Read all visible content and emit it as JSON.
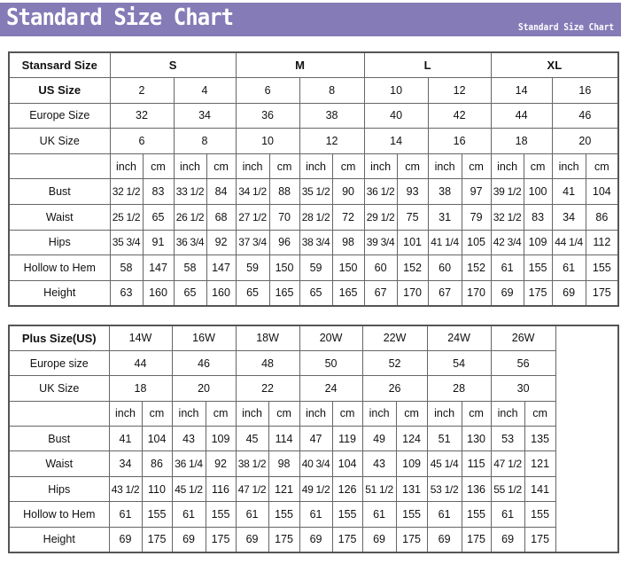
{
  "header": {
    "title": "Standard Size Chart",
    "subtitle": "Standard Size Chart"
  },
  "standard": {
    "label": "Stansard Size",
    "groups": [
      "S",
      "M",
      "L",
      "XL"
    ],
    "rows": [
      {
        "label": "US Size",
        "values": [
          "2",
          "4",
          "6",
          "8",
          "10",
          "12",
          "14",
          "16"
        ]
      },
      {
        "label": "Europe Size",
        "values": [
          "32",
          "34",
          "36",
          "38",
          "40",
          "42",
          "44",
          "46"
        ]
      },
      {
        "label": "UK Size",
        "values": [
          "6",
          "8",
          "10",
          "12",
          "14",
          "16",
          "18",
          "20"
        ]
      }
    ],
    "units": [
      "inch",
      "cm"
    ],
    "measurements": [
      {
        "label": "Bust",
        "values": [
          "32 1/2",
          "83",
          "33 1/2",
          "84",
          "34 1/2",
          "88",
          "35 1/2",
          "90",
          "36 1/2",
          "93",
          "38",
          "97",
          "39 1/2",
          "100",
          "41",
          "104"
        ]
      },
      {
        "label": "Waist",
        "values": [
          "25 1/2",
          "65",
          "26 1/2",
          "68",
          "27 1/2",
          "70",
          "28 1/2",
          "72",
          "29 1/2",
          "75",
          "31",
          "79",
          "32 1/2",
          "83",
          "34",
          "86"
        ]
      },
      {
        "label": "Hips",
        "values": [
          "35 3/4",
          "91",
          "36 3/4",
          "92",
          "37 3/4",
          "96",
          "38 3/4",
          "98",
          "39 3/4",
          "101",
          "41 1/4",
          "105",
          "42 3/4",
          "109",
          "44 1/4",
          "112"
        ]
      },
      {
        "label": "Hollow to Hem",
        "values": [
          "58",
          "147",
          "58",
          "147",
          "59",
          "150",
          "59",
          "150",
          "60",
          "152",
          "60",
          "152",
          "61",
          "155",
          "61",
          "155"
        ]
      },
      {
        "label": "Height",
        "values": [
          "63",
          "160",
          "65",
          "160",
          "65",
          "165",
          "65",
          "165",
          "67",
          "170",
          "67",
          "170",
          "69",
          "175",
          "69",
          "175"
        ]
      }
    ]
  },
  "plus": {
    "label": "Plus Size(US)",
    "sizes": [
      "14W",
      "16W",
      "18W",
      "20W",
      "22W",
      "24W",
      "26W"
    ],
    "rows": [
      {
        "label": "Europe size",
        "values": [
          "44",
          "46",
          "48",
          "50",
          "52",
          "54",
          "56"
        ]
      },
      {
        "label": "UK Size",
        "values": [
          "18",
          "20",
          "22",
          "24",
          "26",
          "28",
          "30"
        ]
      }
    ],
    "units": [
      "inch",
      "cm"
    ],
    "measurements": [
      {
        "label": "Bust",
        "values": [
          "41",
          "104",
          "43",
          "109",
          "45",
          "114",
          "47",
          "119",
          "49",
          "124",
          "51",
          "130",
          "53",
          "135"
        ]
      },
      {
        "label": "Waist",
        "values": [
          "34",
          "86",
          "36 1/4",
          "92",
          "38 1/2",
          "98",
          "40 3/4",
          "104",
          "43",
          "109",
          "45 1/4",
          "115",
          "47 1/2",
          "121"
        ]
      },
      {
        "label": "Hips",
        "values": [
          "43 1/2",
          "110",
          "45 1/2",
          "116",
          "47 1/2",
          "121",
          "49 1/2",
          "126",
          "51 1/2",
          "131",
          "53 1/2",
          "136",
          "55 1/2",
          "141"
        ]
      },
      {
        "label": "Hollow to Hem",
        "values": [
          "61",
          "155",
          "61",
          "155",
          "61",
          "155",
          "61",
          "155",
          "61",
          "155",
          "61",
          "155",
          "61",
          "155"
        ]
      },
      {
        "label": "Height",
        "values": [
          "69",
          "175",
          "69",
          "175",
          "69",
          "175",
          "69",
          "175",
          "69",
          "175",
          "69",
          "175",
          "69",
          "175"
        ]
      }
    ]
  },
  "colors": {
    "banner": "#857bb7",
    "border": "#555555"
  }
}
